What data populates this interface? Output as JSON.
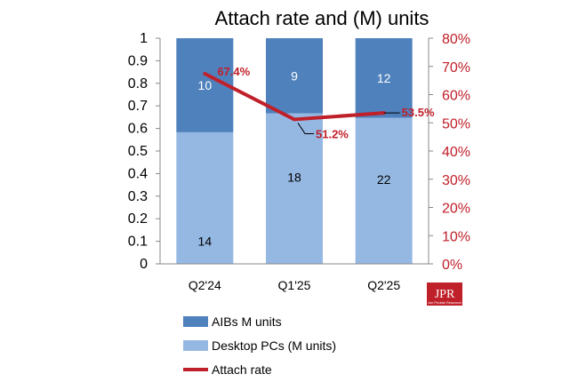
{
  "chart_data": {
    "type": "bar",
    "title": "Attach rate and (M) units",
    "categories": [
      "Q2'24",
      "Q1'25",
      "Q2'25"
    ],
    "left_axis": {
      "min": 0,
      "max": 1,
      "ticks": [
        "0",
        "0.1",
        "0.2",
        "0.3",
        "0.4",
        "0.5",
        "0.6",
        "0.7",
        "0.8",
        "0.9",
        "1"
      ]
    },
    "right_axis": {
      "min": 0,
      "max": 0.8,
      "ticks": [
        "0%",
        "10%",
        "20%",
        "30%",
        "40%",
        "50%",
        "60%",
        "70%",
        "80%"
      ]
    },
    "series": [
      {
        "name": "Desktop PCs (M units)",
        "kind": "stacked-bar-share",
        "values": [
          14,
          18,
          22
        ],
        "share": [
          0.583,
          0.667,
          0.647
        ],
        "labels": [
          "14",
          "18",
          "22"
        ],
        "color": "#95b8e3"
      },
      {
        "name": "AIBs M units",
        "kind": "stacked-bar-share",
        "values": [
          10,
          9,
          12
        ],
        "share": [
          0.417,
          0.333,
          0.353
        ],
        "labels": [
          "10",
          "9",
          "12"
        ],
        "color": "#4f81bd"
      },
      {
        "name": "Attach rate",
        "kind": "line",
        "axis": "right",
        "values": [
          0.674,
          0.512,
          0.535
        ],
        "labels": [
          "67.4%",
          "51.2%",
          "53.5%"
        ],
        "color": "#c0202a"
      }
    ],
    "legend": {
      "placement": "bottom",
      "entries": [
        "AIBs M units",
        "Desktop PCs (M units)",
        "Attach rate"
      ]
    },
    "grid": false
  },
  "logo": {
    "text": "JPR",
    "subtitle": "Jon Peddie Research"
  }
}
